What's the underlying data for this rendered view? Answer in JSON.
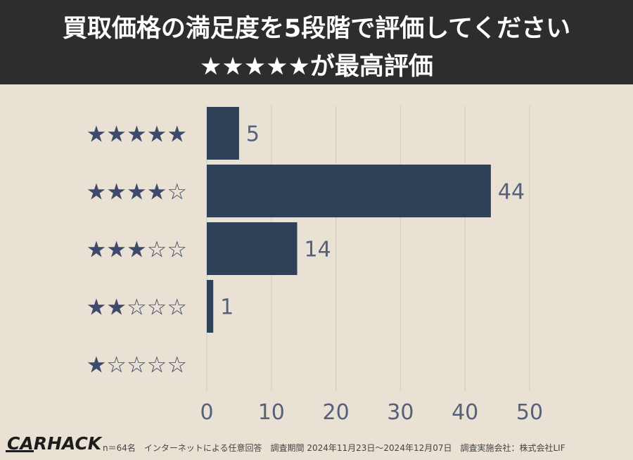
{
  "header": {
    "title_line1": "買取価格の満足度を5段階で評価してください",
    "title_line2": "★★★★★が最高評価"
  },
  "chart_data": {
    "type": "bar",
    "orientation": "horizontal",
    "categories": [
      "★★★★★",
      "★★★★☆",
      "★★★☆☆",
      "★★☆☆☆",
      "★☆☆☆☆"
    ],
    "values": [
      5,
      44,
      14,
      1,
      0
    ],
    "data_labels": [
      "5",
      "44",
      "14",
      "1",
      ""
    ],
    "xlim": [
      0,
      50
    ],
    "xticks": [
      "0",
      "10",
      "20",
      "30",
      "40",
      "50"
    ],
    "grid": "vertical",
    "bar_color": "#2e4157",
    "star_color": "#3d4a6b",
    "tick_color": "#55607a",
    "grid_color": "#d2cabc"
  },
  "footer": {
    "logo": "CARHACK",
    "note": "n＝64名　インターネットによる任意回答　調査期間 2024年11月23日〜2024年12月07日　調査実施会社：株式会社LIF"
  }
}
